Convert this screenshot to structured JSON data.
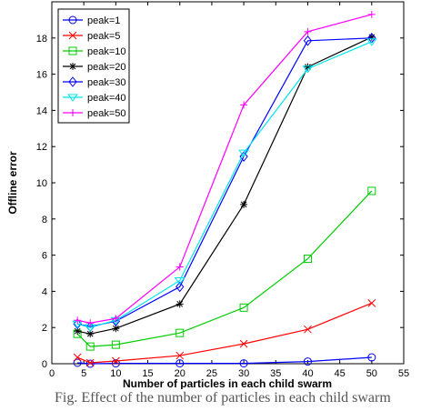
{
  "chart_data": {
    "type": "line",
    "xlabel": "Number of particles in each child swarm",
    "ylabel": "Offline error",
    "xlim": [
      0,
      55
    ],
    "ylim": [
      0,
      20
    ],
    "xticks": [
      0,
      5,
      10,
      15,
      20,
      25,
      30,
      35,
      40,
      45,
      50,
      55
    ],
    "yticks": [
      0,
      2,
      4,
      6,
      8,
      10,
      12,
      14,
      16,
      18
    ],
    "x": [
      4,
      6,
      10,
      20,
      30,
      40,
      50
    ],
    "legend_position": "top-left",
    "grid": false,
    "series": [
      {
        "name": "peak=1",
        "color": "#0000ff",
        "marker": "circle",
        "values": [
          0.05,
          0.0,
          0.02,
          0.02,
          0.02,
          0.12,
          0.35
        ]
      },
      {
        "name": "peak=5",
        "color": "#ff0000",
        "marker": "x",
        "values": [
          0.35,
          0.05,
          0.15,
          0.45,
          1.1,
          1.9,
          3.35
        ]
      },
      {
        "name": "peak=10",
        "color": "#00cc00",
        "marker": "square",
        "values": [
          1.65,
          0.95,
          1.05,
          1.7,
          3.1,
          5.8,
          9.55
        ]
      },
      {
        "name": "peak=20",
        "color": "#000000",
        "marker": "star",
        "values": [
          1.8,
          1.65,
          1.95,
          3.3,
          8.8,
          16.4,
          18.05
        ]
      },
      {
        "name": "peak=30",
        "color": "#0000ff",
        "marker": "diamond",
        "values": [
          2.2,
          2.05,
          2.35,
          4.25,
          11.45,
          17.85,
          18.0
        ]
      },
      {
        "name": "peak=40",
        "color": "#00e5ee",
        "marker": "triangle",
        "values": [
          2.2,
          2.0,
          2.4,
          4.6,
          11.65,
          16.3,
          17.8
        ]
      },
      {
        "name": "peak=50",
        "color": "#ff00ff",
        "marker": "plus",
        "values": [
          2.4,
          2.25,
          2.5,
          5.35,
          14.3,
          18.35,
          19.3
        ]
      }
    ]
  },
  "caption": "Fig. Effect of the number of particles in each child swarm"
}
